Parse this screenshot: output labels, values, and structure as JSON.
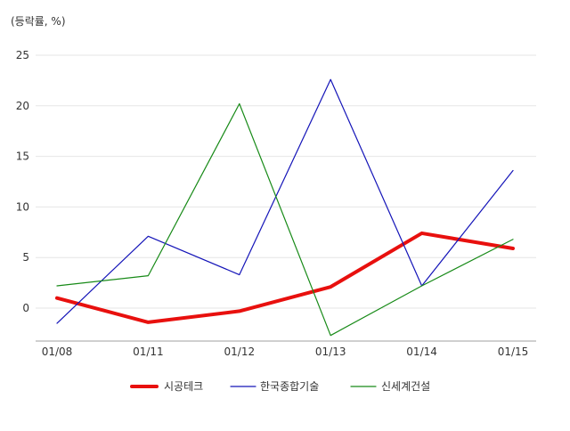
{
  "chart_data": {
    "type": "line",
    "unit_label": "(등락률, %)",
    "categories": [
      "01/08",
      "01/11",
      "01/12",
      "01/13",
      "01/14",
      "01/15"
    ],
    "y_ticks": [
      0,
      5,
      10,
      15,
      20,
      25
    ],
    "ylim": [
      -3.2,
      25
    ],
    "grid": true,
    "legend_position": "bottom-center",
    "series": [
      {
        "name": "시공테크",
        "color": "#e8100e",
        "width": 4,
        "values": [
          1.0,
          -1.4,
          -0.3,
          2.1,
          7.4,
          5.9
        ]
      },
      {
        "name": "한국종합기술",
        "color": "#1414b8",
        "width": 1.2,
        "values": [
          -1.5,
          7.1,
          3.3,
          22.6,
          2.2,
          13.6
        ]
      },
      {
        "name": "신세계건설",
        "color": "#178a17",
        "width": 1.2,
        "values": [
          2.2,
          3.2,
          20.2,
          -2.7,
          2.2,
          6.8
        ]
      }
    ]
  }
}
